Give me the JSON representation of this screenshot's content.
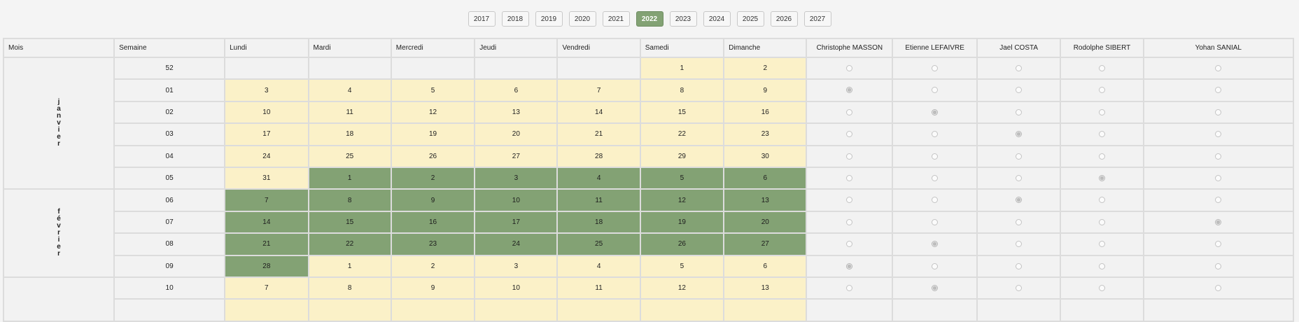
{
  "years": [
    "2017",
    "2018",
    "2019",
    "2020",
    "2021",
    "2022",
    "2023",
    "2024",
    "2025",
    "2026",
    "2027"
  ],
  "active_year": "2022",
  "headers": {
    "mois": "Mois",
    "semaine": "Semaine",
    "days": [
      "Lundi",
      "Mardi",
      "Mercredi",
      "Jeudi",
      "Vendredi",
      "Samedi",
      "Dimanche"
    ]
  },
  "members": [
    "Christophe MASSON",
    "Etienne LEFAIVRE",
    "Jael COSTA",
    "Rodolphe SIBERT",
    "Yohan SANIAL"
  ],
  "months": [
    {
      "label": "janvier",
      "rowspan": 6
    },
    {
      "label": "février",
      "rowspan": 4
    },
    {
      "label": "",
      "rowspan": 2
    }
  ],
  "weeks": [
    {
      "week": "52",
      "days": [
        {
          "d": "",
          "s": "e"
        },
        {
          "d": "",
          "s": "e"
        },
        {
          "d": "",
          "s": "e"
        },
        {
          "d": "",
          "s": "e"
        },
        {
          "d": "",
          "s": "e"
        },
        {
          "d": "1",
          "s": "y"
        },
        {
          "d": "2",
          "s": "y"
        }
      ],
      "selected": -1
    },
    {
      "week": "01",
      "days": [
        {
          "d": "3",
          "s": "y"
        },
        {
          "d": "4",
          "s": "y"
        },
        {
          "d": "5",
          "s": "y"
        },
        {
          "d": "6",
          "s": "y"
        },
        {
          "d": "7",
          "s": "y"
        },
        {
          "d": "8",
          "s": "y"
        },
        {
          "d": "9",
          "s": "y"
        }
      ],
      "selected": 0
    },
    {
      "week": "02",
      "days": [
        {
          "d": "10",
          "s": "y"
        },
        {
          "d": "11",
          "s": "y"
        },
        {
          "d": "12",
          "s": "y"
        },
        {
          "d": "13",
          "s": "y"
        },
        {
          "d": "14",
          "s": "y"
        },
        {
          "d": "15",
          "s": "y"
        },
        {
          "d": "16",
          "s": "y"
        }
      ],
      "selected": 1
    },
    {
      "week": "03",
      "days": [
        {
          "d": "17",
          "s": "y"
        },
        {
          "d": "18",
          "s": "y"
        },
        {
          "d": "19",
          "s": "y"
        },
        {
          "d": "20",
          "s": "y"
        },
        {
          "d": "21",
          "s": "y"
        },
        {
          "d": "22",
          "s": "y"
        },
        {
          "d": "23",
          "s": "y"
        }
      ],
      "selected": 2
    },
    {
      "week": "04",
      "days": [
        {
          "d": "24",
          "s": "y"
        },
        {
          "d": "25",
          "s": "y"
        },
        {
          "d": "26",
          "s": "y"
        },
        {
          "d": "27",
          "s": "y"
        },
        {
          "d": "28",
          "s": "y"
        },
        {
          "d": "29",
          "s": "y"
        },
        {
          "d": "30",
          "s": "y"
        }
      ],
      "selected": -1
    },
    {
      "week": "05",
      "days": [
        {
          "d": "31",
          "s": "y"
        },
        {
          "d": "1",
          "s": "g"
        },
        {
          "d": "2",
          "s": "g"
        },
        {
          "d": "3",
          "s": "g"
        },
        {
          "d": "4",
          "s": "g"
        },
        {
          "d": "5",
          "s": "g"
        },
        {
          "d": "6",
          "s": "g"
        }
      ],
      "selected": 3
    },
    {
      "week": "06",
      "days": [
        {
          "d": "7",
          "s": "g"
        },
        {
          "d": "8",
          "s": "g"
        },
        {
          "d": "9",
          "s": "g"
        },
        {
          "d": "10",
          "s": "g"
        },
        {
          "d": "11",
          "s": "g"
        },
        {
          "d": "12",
          "s": "g"
        },
        {
          "d": "13",
          "s": "g"
        }
      ],
      "selected": 2
    },
    {
      "week": "07",
      "days": [
        {
          "d": "14",
          "s": "g"
        },
        {
          "d": "15",
          "s": "g"
        },
        {
          "d": "16",
          "s": "g"
        },
        {
          "d": "17",
          "s": "g"
        },
        {
          "d": "18",
          "s": "g"
        },
        {
          "d": "19",
          "s": "g"
        },
        {
          "d": "20",
          "s": "g"
        }
      ],
      "selected": 4
    },
    {
      "week": "08",
      "days": [
        {
          "d": "21",
          "s": "g"
        },
        {
          "d": "22",
          "s": "g"
        },
        {
          "d": "23",
          "s": "g"
        },
        {
          "d": "24",
          "s": "g"
        },
        {
          "d": "25",
          "s": "g"
        },
        {
          "d": "26",
          "s": "g"
        },
        {
          "d": "27",
          "s": "g"
        }
      ],
      "selected": 1
    },
    {
      "week": "09",
      "days": [
        {
          "d": "28",
          "s": "g"
        },
        {
          "d": "1",
          "s": "y"
        },
        {
          "d": "2",
          "s": "y"
        },
        {
          "d": "3",
          "s": "y"
        },
        {
          "d": "4",
          "s": "y"
        },
        {
          "d": "5",
          "s": "y"
        },
        {
          "d": "6",
          "s": "y"
        }
      ],
      "selected": 0
    },
    {
      "week": "10",
      "days": [
        {
          "d": "7",
          "s": "y"
        },
        {
          "d": "8",
          "s": "y"
        },
        {
          "d": "9",
          "s": "y"
        },
        {
          "d": "10",
          "s": "y"
        },
        {
          "d": "11",
          "s": "y"
        },
        {
          "d": "12",
          "s": "y"
        },
        {
          "d": "13",
          "s": "y"
        }
      ],
      "selected": 1
    },
    {
      "week": "",
      "days": [
        {
          "d": "",
          "s": "y"
        },
        {
          "d": "",
          "s": "y"
        },
        {
          "d": "",
          "s": "y"
        },
        {
          "d": "",
          "s": "y"
        },
        {
          "d": "",
          "s": "y"
        },
        {
          "d": "",
          "s": "y"
        },
        {
          "d": "",
          "s": "y"
        }
      ],
      "selected": -1
    }
  ],
  "colors": {
    "accent_green": "#83a274",
    "day_yellow": "#fbf1c8",
    "cell_grey": "#f2f2f2"
  },
  "icons": {
    "radio": "radio-button-icon"
  }
}
